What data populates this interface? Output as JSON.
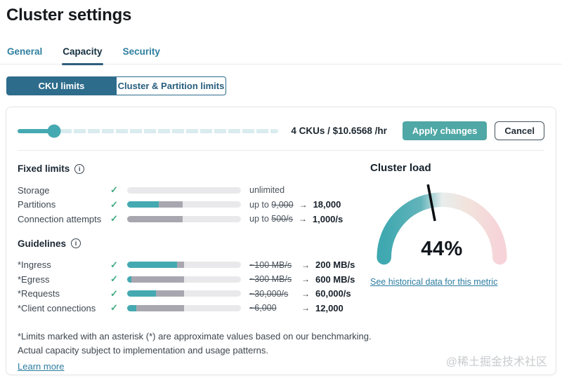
{
  "page": {
    "title": "Cluster settings"
  },
  "icons": {
    "info": "i",
    "check": "✓"
  },
  "colors": {
    "accent_teal": "#45a9b1",
    "accent_dark_blue": "#2e6c8c",
    "tab_blue": "#2e7fa0",
    "apply_teal": "#4fa8a5",
    "bar_gray": "#a8a7b0",
    "bar_light": "#e9e9eb",
    "check_green": "#3eab80",
    "link_blue": "#2c7da0",
    "gauge_pink": "#f6d3d8"
  },
  "tabs": [
    {
      "label": "General",
      "active": false
    },
    {
      "label": "Capacity",
      "active": true
    },
    {
      "label": "Security",
      "active": false
    }
  ],
  "segmented": [
    {
      "label": "CKU limits",
      "active": true
    },
    {
      "label": "Cluster & Partition limits",
      "active": false
    }
  ],
  "slider": {
    "value_pct": 14,
    "value_label": "4 CKUs / $10.6568 /hr"
  },
  "actions": {
    "apply_label": "Apply changes",
    "cancel_label": "Cancel"
  },
  "fixed_limits": {
    "title": "Fixed limits",
    "rows": [
      {
        "label": "Storage",
        "bar": {
          "teal": 0,
          "gray": 0
        },
        "value": {
          "pre": "unlimited",
          "old": "",
          "arrow": "",
          "new": ""
        }
      },
      {
        "label": "Partitions",
        "bar": {
          "teal": 28,
          "gray": 21
        },
        "value": {
          "pre": "up to ",
          "old": "9,000",
          "arrow": "→",
          "new": "18,000"
        }
      },
      {
        "label": "Connection attempts",
        "bar": {
          "teal": 0,
          "gray": 49
        },
        "value": {
          "pre": "up to ",
          "old": "500/s",
          "arrow": "→",
          "new": "1,000/s"
        }
      }
    ]
  },
  "guidelines": {
    "title": "Guidelines",
    "rows": [
      {
        "label": "*Ingress",
        "bar": {
          "teal": 44,
          "gray": 6
        },
        "value": {
          "pre": "",
          "old": "~100 MB/s",
          "arrow": "→",
          "new": "200 MB/s"
        }
      },
      {
        "label": "*Egress",
        "bar": {
          "teal": 4,
          "gray": 46
        },
        "value": {
          "pre": "",
          "old": "~300 MB/s",
          "arrow": "→",
          "new": "600 MB/s"
        }
      },
      {
        "label": "*Requests",
        "bar": {
          "teal": 25,
          "gray": 25
        },
        "value": {
          "pre": "",
          "old": "~30,000/s",
          "arrow": "→",
          "new": "60,000/s"
        }
      },
      {
        "label": "*Client connections",
        "bar": {
          "teal": 8,
          "gray": 42
        },
        "value": {
          "pre": "",
          "old": "~6,000",
          "arrow": "→",
          "new": "12,000"
        }
      }
    ]
  },
  "cluster_load": {
    "title": "Cluster load",
    "value_pct": 44,
    "value_label": "44%",
    "link_label": "See historical data for this metric"
  },
  "footer": {
    "line1": "*Limits marked with an asterisk (*) are approximate values based on our benchmarking.",
    "line2": "Actual capacity subject to implementation and usage patterns.",
    "link_label": "Learn more"
  },
  "watermark": "@稀土掘金技术社区"
}
